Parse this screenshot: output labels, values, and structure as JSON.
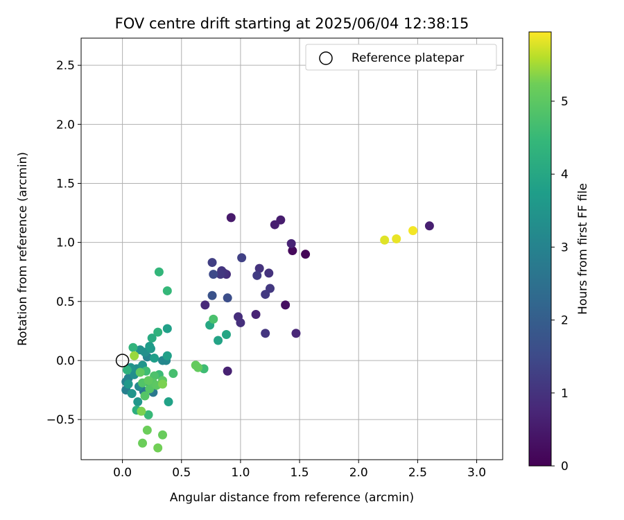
{
  "chart_data": {
    "type": "scatter",
    "title": "FOV centre drift starting at 2025/06/04 12:38:15",
    "xlabel": "Angular distance from reference (arcmin)",
    "ylabel": "Rotation from reference (arcmin)",
    "xlim": [
      -0.35,
      3.22
    ],
    "ylim": [
      -0.84,
      2.73
    ],
    "xticks": [
      "0.0",
      "0.5",
      "1.0",
      "1.5",
      "2.0",
      "2.5",
      "3.0"
    ],
    "xtick_values": [
      0.0,
      0.5,
      1.0,
      1.5,
      2.0,
      2.5,
      3.0
    ],
    "yticks": [
      "−0.5",
      "0.0",
      "0.5",
      "1.0",
      "1.5",
      "2.0",
      "2.5"
    ],
    "ytick_values": [
      -0.5,
      0.0,
      0.5,
      1.0,
      1.5,
      2.0,
      2.5
    ],
    "grid": true,
    "legend": {
      "position": "top-right",
      "entries": [
        "Reference platepar"
      ]
    },
    "reference_point": {
      "x": 0.0,
      "y": 0.0,
      "marker": "open-circle"
    },
    "colorbar": {
      "label": "Hours from first FF file",
      "range": [
        0,
        5.95
      ],
      "ticks": [
        "0",
        "1",
        "2",
        "3",
        "4",
        "5"
      ],
      "tick_values": [
        0,
        1,
        2,
        3,
        4,
        5
      ],
      "colormap": "viridis"
    },
    "points": [
      {
        "x": 1.55,
        "y": 0.9,
        "h": 0.05
      },
      {
        "x": 1.44,
        "y": 0.93,
        "h": 0.15
      },
      {
        "x": 1.38,
        "y": 0.47,
        "h": 0.25
      },
      {
        "x": 0.92,
        "y": 1.21,
        "h": 0.5
      },
      {
        "x": 1.34,
        "y": 1.19,
        "h": 0.55
      },
      {
        "x": 1.29,
        "y": 1.15,
        "h": 0.6
      },
      {
        "x": 2.6,
        "y": 1.14,
        "h": 0.6
      },
      {
        "x": 1.43,
        "y": 0.99,
        "h": 0.7
      },
      {
        "x": 1.47,
        "y": 0.23,
        "h": 0.75
      },
      {
        "x": 1.13,
        "y": 0.39,
        "h": 0.7
      },
      {
        "x": 0.89,
        "y": -0.09,
        "h": 0.65
      },
      {
        "x": 0.7,
        "y": 0.47,
        "h": 0.8
      },
      {
        "x": 0.98,
        "y": 0.37,
        "h": 0.9
      },
      {
        "x": 1.0,
        "y": 0.32,
        "h": 0.95
      },
      {
        "x": 1.16,
        "y": 0.78,
        "h": 1.0
      },
      {
        "x": 1.24,
        "y": 0.74,
        "h": 1.0
      },
      {
        "x": 0.84,
        "y": 0.76,
        "h": 1.05
      },
      {
        "x": 0.88,
        "y": 0.73,
        "h": 0.9
      },
      {
        "x": 0.86,
        "y": 0.74,
        "h": 1.0
      },
      {
        "x": 0.83,
        "y": 0.73,
        "h": 1.1
      },
      {
        "x": 0.76,
        "y": 0.83,
        "h": 1.25
      },
      {
        "x": 1.01,
        "y": 0.87,
        "h": 1.3
      },
      {
        "x": 1.14,
        "y": 0.72,
        "h": 1.2
      },
      {
        "x": 1.21,
        "y": 0.56,
        "h": 1.15
      },
      {
        "x": 1.25,
        "y": 0.61,
        "h": 1.1
      },
      {
        "x": 1.21,
        "y": 0.23,
        "h": 1.05
      },
      {
        "x": 0.77,
        "y": 0.73,
        "h": 1.5
      },
      {
        "x": 0.89,
        "y": 0.53,
        "h": 1.6
      },
      {
        "x": 0.76,
        "y": 0.55,
        "h": 1.7
      },
      {
        "x": 0.18,
        "y": -0.26,
        "h": 2.7
      },
      {
        "x": 0.26,
        "y": -0.27,
        "h": 2.7
      },
      {
        "x": 0.03,
        "y": -0.25,
        "h": 2.9
      },
      {
        "x": 0.03,
        "y": -0.18,
        "h": 2.9
      },
      {
        "x": 0.05,
        "y": -0.15,
        "h": 3.0
      },
      {
        "x": 0.21,
        "y": 0.03,
        "h": 3.0
      },
      {
        "x": 0.34,
        "y": 0.0,
        "h": 3.1
      },
      {
        "x": 0.37,
        "y": 0.0,
        "h": 3.1
      },
      {
        "x": 0.14,
        "y": -0.22,
        "h": 3.2
      },
      {
        "x": 0.1,
        "y": -0.12,
        "h": 3.3
      },
      {
        "x": 0.12,
        "y": -0.07,
        "h": 3.3
      },
      {
        "x": 0.19,
        "y": 0.07,
        "h": 3.35
      },
      {
        "x": 0.15,
        "y": 0.09,
        "h": 3.4
      },
      {
        "x": 0.07,
        "y": -0.06,
        "h": 3.45
      },
      {
        "x": 0.17,
        "y": -0.04,
        "h": 3.5
      },
      {
        "x": 0.08,
        "y": -0.28,
        "h": 3.5
      },
      {
        "x": 0.24,
        "y": 0.1,
        "h": 3.55
      },
      {
        "x": 0.13,
        "y": -0.35,
        "h": 3.55
      },
      {
        "x": 0.22,
        "y": -0.18,
        "h": 3.6
      },
      {
        "x": 0.05,
        "y": -0.2,
        "h": 3.6
      },
      {
        "x": 0.23,
        "y": 0.12,
        "h": 3.7
      },
      {
        "x": 0.27,
        "y": 0.02,
        "h": 3.75
      },
      {
        "x": 0.38,
        "y": 0.27,
        "h": 3.8
      },
      {
        "x": 0.38,
        "y": 0.04,
        "h": 3.8
      },
      {
        "x": 0.39,
        "y": -0.35,
        "h": 3.85
      },
      {
        "x": 0.81,
        "y": 0.17,
        "h": 3.9
      },
      {
        "x": 0.88,
        "y": 0.22,
        "h": 3.95
      },
      {
        "x": 0.74,
        "y": 0.3,
        "h": 4.0
      },
      {
        "x": 0.25,
        "y": 0.19,
        "h": 4.1
      },
      {
        "x": 0.12,
        "y": -0.42,
        "h": 4.2
      },
      {
        "x": 0.04,
        "y": -0.08,
        "h": 4.3
      },
      {
        "x": 0.09,
        "y": 0.11,
        "h": 4.35
      },
      {
        "x": 0.3,
        "y": 0.24,
        "h": 4.3
      },
      {
        "x": 0.31,
        "y": 0.75,
        "h": 4.4
      },
      {
        "x": 0.38,
        "y": 0.59,
        "h": 4.45
      },
      {
        "x": 0.22,
        "y": -0.46,
        "h": 4.5
      },
      {
        "x": 0.31,
        "y": -0.12,
        "h": 4.55
      },
      {
        "x": 0.2,
        "y": -0.09,
        "h": 4.6
      },
      {
        "x": 0.69,
        "y": -0.07,
        "h": 4.6
      },
      {
        "x": 0.77,
        "y": 0.35,
        "h": 4.75
      },
      {
        "x": 0.43,
        "y": -0.11,
        "h": 4.7
      },
      {
        "x": 0.27,
        "y": -0.13,
        "h": 4.8
      },
      {
        "x": 0.17,
        "y": -0.19,
        "h": 4.85
      },
      {
        "x": 0.23,
        "y": -0.24,
        "h": 4.9
      },
      {
        "x": 0.19,
        "y": -0.3,
        "h": 4.9
      },
      {
        "x": 0.26,
        "y": -0.19,
        "h": 4.95
      },
      {
        "x": 0.29,
        "y": -0.21,
        "h": 5.0
      },
      {
        "x": 0.34,
        "y": -0.17,
        "h": 5.0
      },
      {
        "x": 0.22,
        "y": -0.17,
        "h": 5.05
      },
      {
        "x": 0.15,
        "y": -0.1,
        "h": 5.05
      },
      {
        "x": 0.62,
        "y": -0.04,
        "h": 5.1
      },
      {
        "x": 0.64,
        "y": -0.06,
        "h": 5.1
      },
      {
        "x": 0.34,
        "y": -0.63,
        "h": 5.15
      },
      {
        "x": 0.21,
        "y": -0.59,
        "h": 5.2
      },
      {
        "x": 0.17,
        "y": -0.7,
        "h": 5.2
      },
      {
        "x": 0.3,
        "y": -0.74,
        "h": 5.25
      },
      {
        "x": 0.16,
        "y": -0.43,
        "h": 5.3
      },
      {
        "x": 0.34,
        "y": -0.2,
        "h": 5.3
      },
      {
        "x": 0.1,
        "y": 0.04,
        "h": 5.45
      },
      {
        "x": 2.22,
        "y": 1.02,
        "h": 5.8
      },
      {
        "x": 2.32,
        "y": 1.03,
        "h": 5.85
      },
      {
        "x": 2.46,
        "y": 1.1,
        "h": 5.9
      }
    ]
  }
}
